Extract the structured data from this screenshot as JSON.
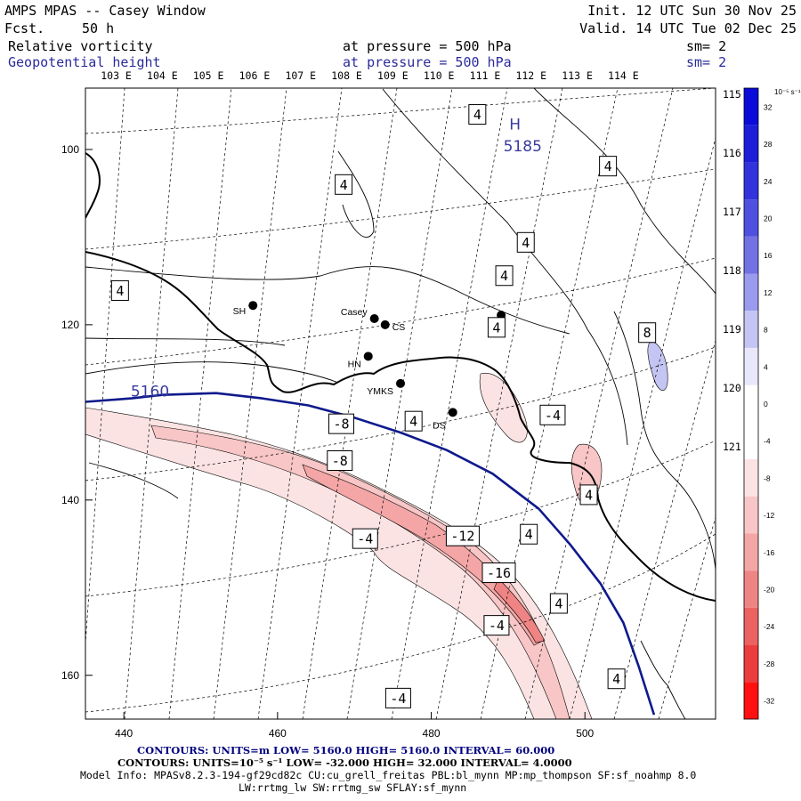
{
  "header": {
    "left_line1": "AMPS MPAS -- Casey Window",
    "left_line2_a": "Fcst.",
    "left_line2_b": "50 h",
    "right_line1": "Init. 12 UTC Sun 30 Nov 25",
    "right_line2": "Valid. 14 UTC Tue 02 Dec 25",
    "field1": {
      "name": "Relative vorticity",
      "level": "at pressure =  500 hPa",
      "sm": "sm= 2"
    },
    "field2": {
      "name": "Geopotential height",
      "level": "at pressure =  500 hPa",
      "sm": "sm= 2"
    }
  },
  "footer": {
    "contours1": "CONTOURS:  UNITS=m  LOW=  5160.0          HIGH=  5160.0       INTERVAL=   60.000",
    "contours2": "CONTOURS:  UNITS=10⁻⁵ s⁻¹   LOW= -32.000        HIGH=  32.000      INTERVAL=   4.0000",
    "model_info": "Model Info: MPASv8.2.3-194-gf29cd82c CU:cu_grell_freitas PBL:bl_mynn MP:mp_thompson SF:sf_noahmp 8.0",
    "model_info2": "LW:rrtmg_lw SW:rrtmg_sw SFLAY:sf_mynn"
  },
  "colorbar_unit": "10⁻⁵ s⁻¹",
  "chart_data": {
    "type": "contour map",
    "xlim": [
      435,
      517
    ],
    "ylim": [
      165,
      93
    ],
    "x_ticks": [
      440,
      460,
      480,
      500
    ],
    "y_ticks": [
      100,
      120,
      140,
      160
    ],
    "lon_labels": [
      "103 E",
      "104 E",
      "105 E",
      "106 E",
      "107 E",
      "108 E",
      "109 E",
      "110 E",
      "111 E",
      "112 E",
      "113 E",
      "114 E"
    ],
    "lon_label_x": [
      439,
      445,
      451,
      457,
      463,
      469,
      475,
      481,
      487,
      493,
      499,
      505
    ],
    "right_lon_labels": [
      "115 E",
      "116 E",
      "117 E",
      "118 E",
      "119 E",
      "120 E",
      "121 E"
    ],
    "colorbar": {
      "levels": [
        32,
        28,
        24,
        20,
        16,
        12,
        8,
        4,
        0,
        -4,
        -8,
        -12,
        -16,
        -20,
        -24,
        -28,
        -32
      ],
      "colors": [
        "#0a0ad9",
        "#1e1ed9",
        "#3333dd",
        "#4f4fe0",
        "#7272e5",
        "#9a9aee",
        "#c5c5f4",
        "#e8e8fa",
        "#ffffff",
        "#ffffff",
        "#fce3e3",
        "#f8c6c6",
        "#f4a6a6",
        "#ef8484",
        "#ec6262",
        "#eb3d3d",
        "#ff1111"
      ]
    },
    "stations": [
      {
        "name": "SH",
        "x": 456.8,
        "y": 117.8
      },
      {
        "name": "Casey",
        "x": 472.6,
        "y": 119.3
      },
      {
        "name": "CS",
        "x": 474.0,
        "y": 120.0
      },
      {
        "name": "HN",
        "x": 471.8,
        "y": 123.6
      },
      {
        "name": "YMKS",
        "x": 476.0,
        "y": 126.7
      },
      {
        "name": "DS",
        "x": 482.8,
        "y": 130.0
      },
      {
        "name": "",
        "x": 489.1,
        "y": 118.9
      }
    ],
    "height_labels": [
      {
        "text": "H",
        "x": 490.9,
        "y": 97.1
      },
      {
        "text": "5185",
        "x": 491.9,
        "y": 99.6
      },
      {
        "text": "5160",
        "x": 443.4,
        "y": 127.6
      }
    ],
    "contour_labels": [
      {
        "text": "4",
        "x": 486,
        "y": 96
      },
      {
        "text": "4",
        "x": 503,
        "y": 101.9
      },
      {
        "text": "4",
        "x": 468.6,
        "y": 104
      },
      {
        "text": "4",
        "x": 492.3,
        "y": 110.6
      },
      {
        "text": "4",
        "x": 489.5,
        "y": 114.4
      },
      {
        "text": "4",
        "x": 439.5,
        "y": 116.1
      },
      {
        "text": "4",
        "x": 488.5,
        "y": 120.3
      },
      {
        "text": "8",
        "x": 508.1,
        "y": 120.9
      },
      {
        "text": "-8",
        "x": 468.3,
        "y": 131.3
      },
      {
        "text": "4",
        "x": 477.7,
        "y": 131.0
      },
      {
        "text": "-4",
        "x": 495.8,
        "y": 130.3
      },
      {
        "text": "-8",
        "x": 468.1,
        "y": 135.5
      },
      {
        "text": "4",
        "x": 500.5,
        "y": 139.4
      },
      {
        "text": "-4",
        "x": 471.4,
        "y": 144.4
      },
      {
        "text": "-12",
        "x": 484.1,
        "y": 144.1
      },
      {
        "text": "4",
        "x": 492.7,
        "y": 143.9
      },
      {
        "text": "-16",
        "x": 488.8,
        "y": 148.3
      },
      {
        "text": "4",
        "x": 496.6,
        "y": 151.8
      },
      {
        "text": "-4",
        "x": 488.5,
        "y": 154.3
      },
      {
        "text": "4",
        "x": 504.1,
        "y": 160.4
      },
      {
        "text": "-4",
        "x": 475.7,
        "y": 162.6
      }
    ],
    "height_contour_5160": [
      [
        435,
        128.8
      ],
      [
        441,
        128.4
      ],
      [
        445,
        128.0
      ],
      [
        452,
        127.8
      ],
      [
        458,
        128.4
      ],
      [
        464,
        129.2
      ],
      [
        470,
        130.6
      ],
      [
        476,
        132.3
      ],
      [
        482,
        134.3
      ],
      [
        488,
        137.0
      ],
      [
        494,
        141.0
      ],
      [
        498,
        145.0
      ],
      [
        502,
        149.5
      ],
      [
        505,
        154.0
      ],
      [
        507,
        159.0
      ],
      [
        509,
        164.5
      ]
    ]
  }
}
